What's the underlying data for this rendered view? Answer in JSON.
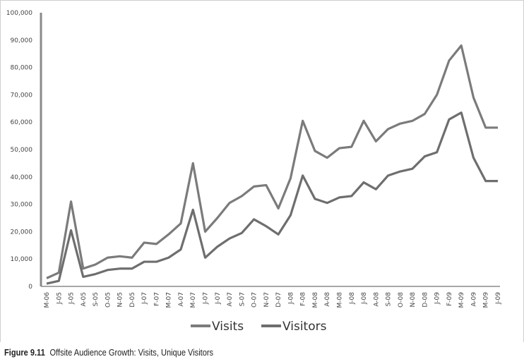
{
  "chart_data": {
    "type": "line",
    "title": "",
    "xlabel": "",
    "ylabel": "",
    "ylim": [
      0,
      100000
    ],
    "yticks": [
      "0",
      "10,000",
      "20,000",
      "30,000",
      "40,000",
      "50,000",
      "60,000",
      "70,000",
      "80,000",
      "90,000",
      "100,000"
    ],
    "grid": false,
    "legend_position": "bottom",
    "categories": [
      "M-06",
      "J-05",
      "J-05",
      "A-05",
      "S-05",
      "O-05",
      "N-05",
      "D-05",
      "J-07",
      "F-07",
      "M-07",
      "A-07",
      "M-07",
      "J-07",
      "J-07",
      "A-07",
      "S-07",
      "O-07",
      "N-07",
      "D-07",
      "J-08",
      "F-08",
      "M-08",
      "A-08",
      "M-08",
      "J-08",
      "J-08",
      "A-08",
      "S-08",
      "O-08",
      "N-08",
      "D-08",
      "J-09",
      "F-09",
      "M-09",
      "A-09",
      "M-09",
      "J-09"
    ],
    "series": [
      {
        "name": "Visits",
        "color": "#7b7b7b",
        "values": [
          3000,
          5000,
          31000,
          6500,
          8000,
          10500,
          11000,
          10500,
          16000,
          15500,
          19000,
          23000,
          45000,
          20000,
          25000,
          30500,
          33000,
          36500,
          37000,
          28500,
          39500,
          60500,
          49500,
          47000,
          50500,
          51000,
          60500,
          53000,
          57500,
          59500,
          60500,
          63000,
          70000,
          82500,
          88000,
          69000,
          58000,
          58000
        ]
      },
      {
        "name": "Visitors",
        "color": "#6e6e6e",
        "values": [
          1000,
          2000,
          20500,
          3500,
          4500,
          6000,
          6500,
          6500,
          9000,
          9000,
          10500,
          13500,
          28000,
          10500,
          14500,
          17500,
          19500,
          24500,
          22000,
          19000,
          26000,
          40500,
          32000,
          30500,
          32500,
          33000,
          38000,
          35500,
          40500,
          42000,
          43000,
          47500,
          49000,
          61000,
          63500,
          47000,
          38500,
          38500
        ]
      }
    ]
  },
  "caption": {
    "figure": "Figure 9.11",
    "text": "Offsite Audience Growth: Visits, Unique Visitors"
  }
}
